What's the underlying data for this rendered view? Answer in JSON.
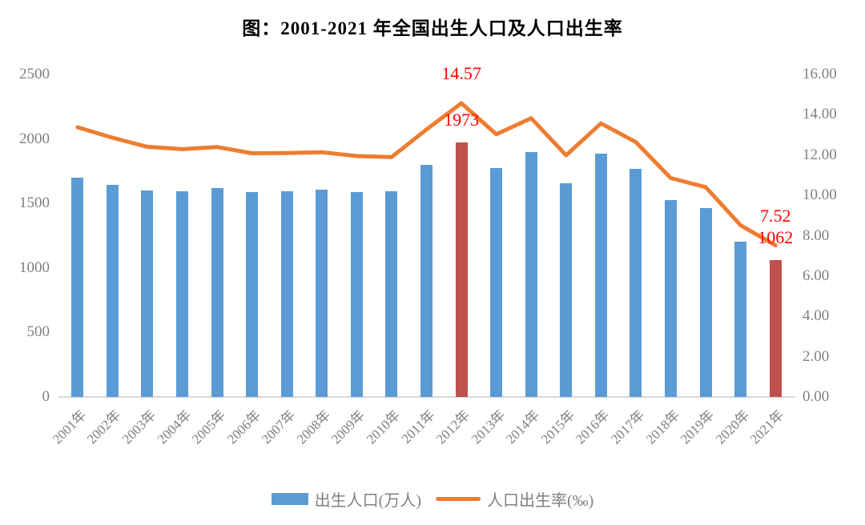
{
  "title": "图：2001-2021 年全国出生人口及人口出生率",
  "chart_data": {
    "type": "bar",
    "subtype": "bar+line dual axis",
    "categories": [
      "2001年",
      "2002年",
      "2003年",
      "2004年",
      "2005年",
      "2006年",
      "2007年",
      "2008年",
      "2009年",
      "2010年",
      "2011年",
      "2012年",
      "2013年",
      "2014年",
      "2015年",
      "2016年",
      "2017年",
      "2018年",
      "2019年",
      "2020年",
      "2021年"
    ],
    "series": [
      {
        "name": "出生人口(万人)",
        "type": "bar",
        "axis": "left",
        "values": [
          1702,
          1647,
          1599,
          1593,
          1617,
          1585,
          1594,
          1608,
          1591,
          1592,
          1797,
          1973,
          1776,
          1897,
          1655,
          1883,
          1765,
          1523,
          1465,
          1202,
          1062
        ]
      },
      {
        "name": "人口出生率(‰)",
        "type": "line",
        "axis": "right",
        "values": [
          13.38,
          12.86,
          12.41,
          12.29,
          12.4,
          12.09,
          12.1,
          12.14,
          11.95,
          11.9,
          13.27,
          14.57,
          13.03,
          13.83,
          11.99,
          13.57,
          12.64,
          10.86,
          10.41,
          8.52,
          7.52
        ]
      }
    ],
    "left_axis": {
      "min": 0,
      "max": 2500,
      "tick_values": [
        2500,
        2000,
        1500,
        1000,
        500,
        0
      ],
      "tick_labels": [
        "2500",
        "2000",
        "1500",
        "1000",
        "500",
        "0"
      ]
    },
    "right_axis": {
      "min": 0,
      "max": 16,
      "tick_values": [
        16,
        14,
        12,
        10,
        8,
        6,
        4,
        2,
        0
      ],
      "tick_labels": [
        "16.00",
        "14.00",
        "12.00",
        "10.00",
        "8.00",
        "6.00",
        "4.00",
        "2.00",
        "0.00"
      ]
    },
    "highlight": {
      "categories": [
        "2012年",
        "2021年"
      ]
    },
    "annotations": [
      {
        "category": "2012年",
        "series": "line",
        "text": "14.57"
      },
      {
        "category": "2012年",
        "series": "bar",
        "text": "1973"
      },
      {
        "category": "2021年",
        "series": "line",
        "text": "7.52"
      },
      {
        "category": "2021年",
        "series": "bar",
        "text": "1062"
      }
    ],
    "legend": [
      {
        "label": "出生人口(万人)",
        "swatch": "bar"
      },
      {
        "label": "人口出生率(‰)",
        "swatch": "line"
      }
    ],
    "legend_position": "bottom",
    "grid": false,
    "colors": {
      "bar": "#5b9bd5",
      "bar_highlight": "#c0504d",
      "line": "#ed7d31",
      "annotation": "#ff0000",
      "axis_text": "#808080",
      "axis_line": "#d9d9d9",
      "title_text": "#000000"
    }
  }
}
